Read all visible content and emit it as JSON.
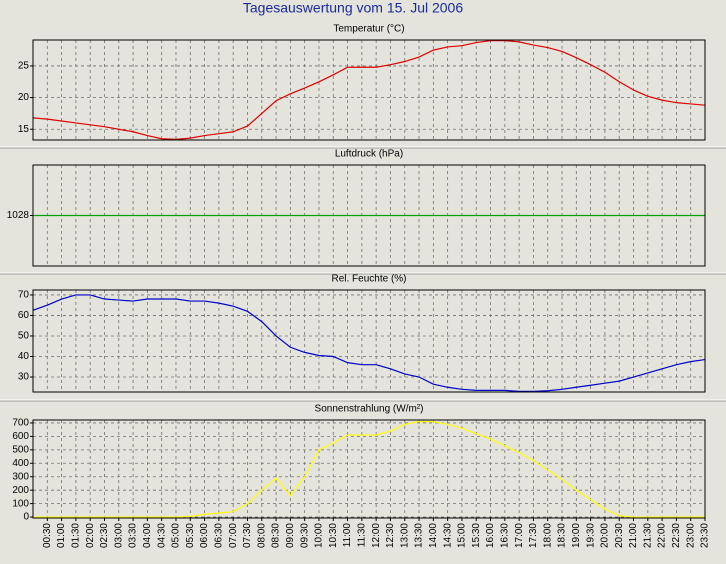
{
  "title": "Tagesauswertung vom 15. Jul 2006",
  "categories": [
    null,
    "00:30",
    "01:00",
    "01:30",
    "02:00",
    "02:30",
    "03:00",
    "03:30",
    "04:00",
    "04:30",
    "05:00",
    "05:30",
    "06:00",
    "06:30",
    "07:00",
    "07:30",
    "08:00",
    "08:30",
    "09:00",
    "09:30",
    "10:00",
    "10:30",
    "11:00",
    "11:30",
    "12:00",
    "12:30",
    "13:00",
    "13:30",
    "14:00",
    "14:30",
    "15:00",
    "15:30",
    "16:00",
    "16:30",
    "17:00",
    "17:30",
    "18:00",
    "18:30",
    "19:00",
    "19:30",
    "20:00",
    "20:30",
    "21:00",
    "21:30",
    "22:00",
    "22:30",
    "23:00",
    "23:30"
  ],
  "chart_data": [
    {
      "type": "line",
      "title": "Temperatur (°C)",
      "ylim": [
        13.3,
        29.1
      ],
      "yticks": [
        15,
        20,
        25
      ],
      "grid": true,
      "series": [
        {
          "color": "#e00000",
          "values": [
            16.8,
            16.6,
            16.3,
            16.0,
            15.7,
            15.4,
            15.0,
            14.6,
            14.0,
            13.5,
            13.4,
            13.6,
            14.0,
            14.3,
            14.6,
            15.5,
            17.5,
            19.5,
            20.6,
            21.5,
            22.5,
            23.6,
            24.8,
            24.8,
            24.8,
            25.2,
            25.7,
            26.4,
            27.5,
            28.0,
            28.2,
            28.7,
            29.0,
            29.0,
            28.8,
            28.3,
            27.9,
            27.3,
            26.3,
            25.2,
            24.0,
            22.5,
            21.2,
            20.2,
            19.6,
            19.2,
            19.0,
            18.8
          ]
        }
      ]
    },
    {
      "type": "line",
      "title": "Luftdruck (hPa)",
      "ylim": [
        1027,
        1029
      ],
      "yticks": [
        1028
      ],
      "grid": false,
      "series": [
        {
          "color": "#00a000",
          "values": [
            1028,
            1028,
            1028,
            1028,
            1028,
            1028,
            1028,
            1028,
            1028,
            1028,
            1028,
            1028,
            1028,
            1028,
            1028,
            1028,
            1028,
            1028,
            1028,
            1028,
            1028,
            1028,
            1028,
            1028,
            1028,
            1028,
            1028,
            1028,
            1028,
            1028,
            1028,
            1028,
            1028,
            1028,
            1028,
            1028,
            1028,
            1028,
            1028,
            1028,
            1028,
            1028,
            1028,
            1028,
            1028,
            1028,
            1028,
            1028
          ]
        }
      ]
    },
    {
      "type": "line",
      "title": "Rel. Feuchte (%)",
      "ylim": [
        22.7,
        72.4
      ],
      "yticks": [
        30,
        40,
        50,
        60,
        70
      ],
      "grid": true,
      "series": [
        {
          "color": "#0000cc",
          "values": [
            62.5,
            65,
            68,
            70,
            70,
            68,
            67.5,
            67,
            68,
            68,
            68,
            67,
            67,
            66,
            64.5,
            62,
            57,
            50,
            44.5,
            42,
            40.5,
            40,
            37,
            36,
            36,
            34,
            31.5,
            30,
            26.5,
            25,
            24,
            23.5,
            23.5,
            23.5,
            23,
            23,
            23.3,
            24,
            25,
            26,
            27,
            28,
            30,
            32,
            34,
            36,
            37.5,
            38.5
          ]
        }
      ]
    },
    {
      "type": "line",
      "title": "Sonnenstrahlung (W/m²)",
      "ylim": [
        -7,
        722
      ],
      "yticks": [
        0,
        100,
        200,
        300,
        400,
        500,
        600,
        700
      ],
      "grid": true,
      "series": [
        {
          "color": "#ffff00",
          "values": [
            0,
            0,
            0,
            0,
            0,
            0,
            0,
            0,
            0,
            0,
            0,
            5,
            20,
            30,
            40,
            100,
            200,
            290,
            160,
            300,
            500,
            550,
            610,
            610,
            610,
            640,
            690,
            710,
            710,
            690,
            660,
            620,
            580,
            530,
            480,
            420,
            350,
            280,
            200,
            130,
            60,
            10,
            0,
            0,
            0,
            0,
            0,
            0
          ]
        }
      ]
    }
  ]
}
